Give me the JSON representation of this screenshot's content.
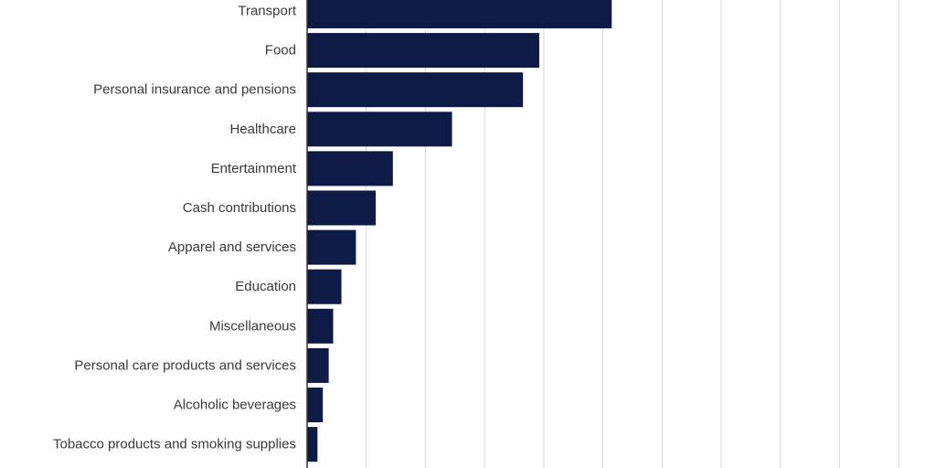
{
  "chart_data": {
    "type": "bar",
    "orientation": "horizontal",
    "title": "",
    "xlabel": "",
    "ylabel": "",
    "categories": [
      "Transport",
      "Food",
      "Personal insurance and pensions",
      "Healthcare",
      "Entertainment",
      "Cash contributions",
      "Apparel and services",
      "Education",
      "Miscellaneous",
      "Personal care products and services",
      "Alcoholic beverages",
      "Tobacco products and smoking supplies"
    ],
    "values": [
      103,
      78.5,
      73,
      49,
      29,
      23.2,
      16.5,
      11.6,
      8.8,
      7.3,
      5.3,
      3.5
    ],
    "xlim": [
      0,
      200
    ],
    "grid": true,
    "legend": "none",
    "bar_color": "#0c1a45",
    "grid_color": "#d9d9d9",
    "axis_color": "#333333"
  }
}
